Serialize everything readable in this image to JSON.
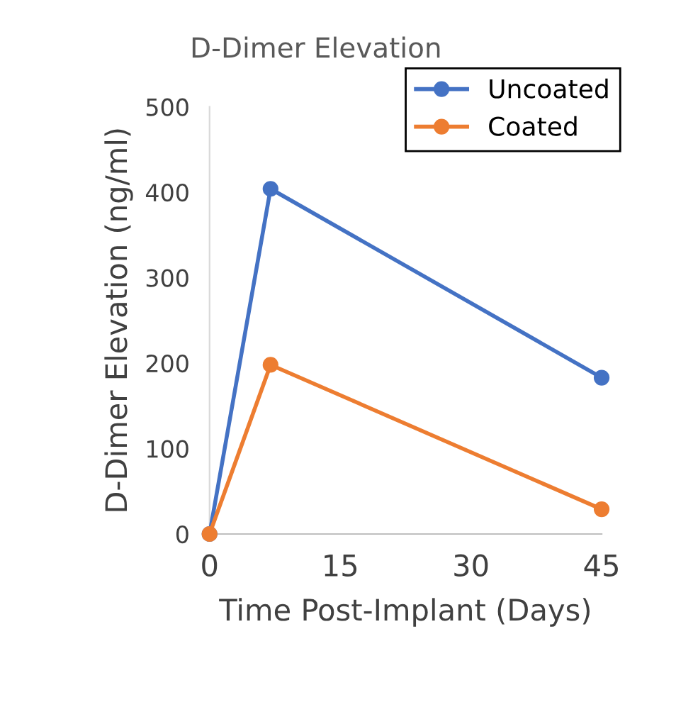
{
  "chart_data": {
    "type": "line",
    "title": "D-Dimer Elevation",
    "xlabel": "Time Post-Implant (Days)",
    "ylabel": "D-Dimer Elevation (ng/ml)",
    "x": [
      0,
      7,
      45
    ],
    "series": [
      {
        "name": "Uncoated",
        "color": "#4472c4",
        "values": [
          0,
          404,
          183
        ]
      },
      {
        "name": "Coated",
        "color": "#ed7d31",
        "values": [
          0,
          198,
          29
        ]
      }
    ],
    "xlim": [
      0,
      45
    ],
    "xticks": [
      0,
      15,
      30,
      45
    ],
    "ylim": [
      0,
      500
    ],
    "yticks": [
      0,
      100,
      200,
      300,
      400,
      500
    ],
    "marker": "circle",
    "line_style": "solid",
    "grid": false,
    "legend": "top right"
  }
}
